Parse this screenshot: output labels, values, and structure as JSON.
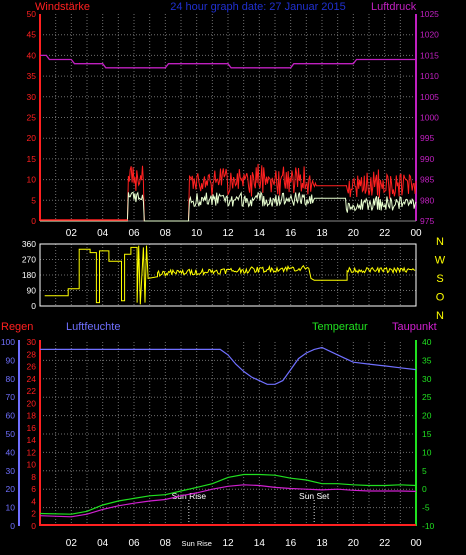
{
  "header": {
    "left_title": "Windstärke",
    "center_title": "24 hour graph date: 27 Januar 2015",
    "right_title": "Luftdruck"
  },
  "bottom_header": {
    "regen": "Regen",
    "luftfeuchte": "Luftfeuchte",
    "temperatur": "Temperatur",
    "taupunkt": "Taupunkt"
  },
  "colors": {
    "wind_axis": "#ff2020",
    "pressure": "#c020c0",
    "gust": "#ff2020",
    "wind": "#e8ffd0",
    "direction": "#ffff00",
    "humidity": "#7070ff",
    "temperature": "#20e020",
    "dewpoint": "#d020d0",
    "rain": "#ff2020",
    "grid": "#6e6e6e",
    "compass": "#ffff00",
    "sun": "#dddddd"
  },
  "compass_labels": [
    "N",
    "W",
    "S",
    "O",
    "N"
  ],
  "sun_markers": {
    "rise": "Sun Rise",
    "set": "Sun Set"
  },
  "chart_data": [
    {
      "type": "line",
      "panel": "wind-pressure",
      "x_ticks": [
        "02",
        "04",
        "06",
        "08",
        "10",
        "12",
        "14",
        "16",
        "18",
        "20",
        "22",
        "00"
      ],
      "y_left": {
        "label": "Windstärke",
        "lim": [
          0,
          50
        ],
        "ticks": [
          0,
          5,
          10,
          15,
          20,
          25,
          30,
          35,
          40,
          45,
          50
        ]
      },
      "y_right": {
        "label": "Luftdruck",
        "lim": [
          975,
          1025
        ],
        "ticks": [
          975,
          980,
          985,
          990,
          995,
          1000,
          1005,
          1010,
          1015,
          1020,
          1025
        ]
      },
      "series": [
        {
          "name": "Luftdruck",
          "axis": "right",
          "x": [
            0,
            0.4,
            0.6,
            2.0,
            2.2,
            4.0,
            4.2,
            8.0,
            8.2,
            12.0,
            12.2,
            16.0,
            16.2,
            20.0,
            20.2,
            24.0
          ],
          "y": [
            1015,
            1015,
            1014,
            1014,
            1013,
            1013,
            1012,
            1012,
            1013,
            1013,
            1012,
            1012,
            1013,
            1013,
            1014,
            1014
          ]
        }
      ]
    },
    {
      "type": "line",
      "panel": "wind-direction",
      "x_ticks": [
        "02",
        "04",
        "06",
        "08",
        "10",
        "12",
        "14",
        "16",
        "18",
        "20",
        "22",
        "00"
      ],
      "y_left": {
        "lim": [
          0,
          360
        ],
        "ticks": [
          0,
          90,
          180,
          270,
          360
        ]
      },
      "y_right_labels": [
        "N",
        "W",
        "S",
        "O",
        "N"
      ]
    },
    {
      "type": "line",
      "panel": "rain-humidity-temperature",
      "x_ticks": [
        "02",
        "04",
        "06",
        "08",
        "Sun Rise",
        "12",
        "14",
        "16",
        "18",
        "20",
        "22",
        "00"
      ],
      "y_left_humidity": {
        "label": "Luftfeuchte",
        "lim": [
          0,
          100
        ],
        "ticks": [
          0,
          10,
          20,
          30,
          40,
          50,
          60,
          70,
          80,
          90,
          100
        ]
      },
      "y_left_rain": {
        "label": "Regen",
        "lim": [
          0,
          30
        ],
        "ticks": [
          0,
          2,
          4,
          6,
          8,
          10,
          12,
          14,
          16,
          18,
          20,
          22,
          24,
          26,
          28,
          30
        ]
      },
      "y_right": {
        "label": "Temperatur",
        "lim": [
          -10,
          40
        ],
        "ticks": [
          -10,
          -5,
          0,
          5,
          10,
          15,
          20,
          25,
          30,
          35,
          40
        ]
      },
      "series": [
        {
          "name": "Luftfeuchte",
          "axis": "humidity",
          "x": [
            0,
            11.5,
            12.0,
            12.5,
            13.0,
            13.5,
            14.0,
            14.5,
            15.0,
            15.5,
            16.0,
            16.5,
            17.0,
            17.5,
            18.0,
            18.5,
            19.0,
            19.5,
            20.0,
            21.0,
            22.0,
            23.0,
            24.0
          ],
          "y": [
            96,
            96,
            93,
            88,
            84,
            81,
            79,
            77,
            77,
            79,
            85,
            91,
            94,
            96,
            97,
            95,
            93,
            91,
            89,
            88,
            87,
            86,
            85
          ]
        },
        {
          "name": "Temperatur",
          "axis": "right",
          "x": [
            0,
            2,
            3,
            4,
            5,
            6,
            7,
            8,
            9,
            10,
            11,
            12,
            13,
            14,
            15,
            16,
            17,
            18,
            19,
            20,
            21,
            22,
            23,
            24
          ],
          "y": [
            -6.6,
            -6.8,
            -6.0,
            -4.3,
            -3.2,
            -2.5,
            -1.8,
            -1.5,
            -0.5,
            0.5,
            1.5,
            3.2,
            4.0,
            4.0,
            3.8,
            3.0,
            2.5,
            1.5,
            1.5,
            1.2,
            1.0,
            1.0,
            1.2,
            1.0
          ]
        },
        {
          "name": "Taupunkt",
          "axis": "right",
          "x": [
            0,
            2,
            3,
            4,
            5,
            6,
            7,
            8,
            9,
            10,
            11,
            12,
            13,
            14,
            15,
            16,
            17,
            18,
            19,
            20,
            21,
            22,
            23,
            24
          ],
          "y": [
            -7.2,
            -7.5,
            -6.8,
            -5.5,
            -4.5,
            -3.8,
            -3.2,
            -2.8,
            -1.8,
            -1.0,
            0.0,
            0.8,
            1.2,
            1.0,
            0.5,
            0.2,
            0.0,
            -0.2,
            0.0,
            -0.3,
            -0.5,
            -0.5,
            -0.5,
            -0.6
          ]
        },
        {
          "name": "Regen",
          "axis": "rain",
          "x": [
            0,
            24
          ],
          "y": [
            0,
            0
          ]
        }
      ]
    }
  ]
}
